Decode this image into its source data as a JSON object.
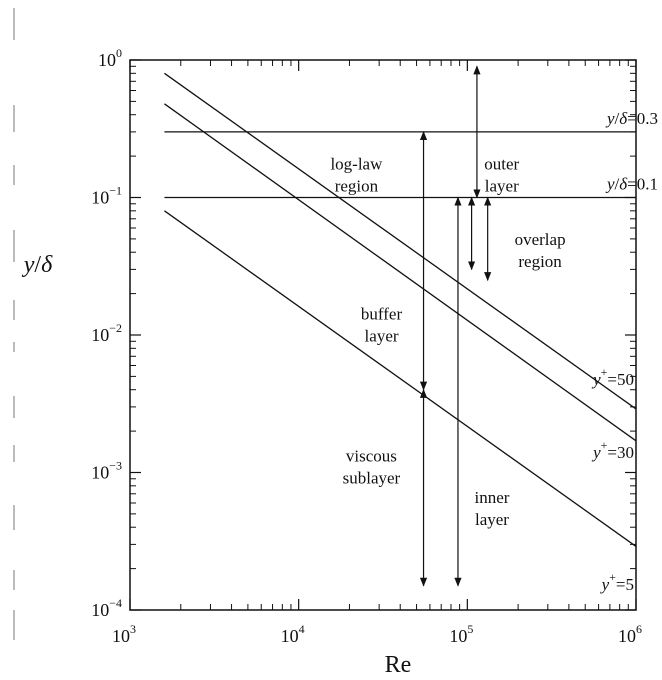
{
  "chart_data": {
    "type": "line",
    "x_scale": "log",
    "y_scale": "log",
    "xlabel_main": "Re",
    "ylabel_main": "y",
    "ylabel_sep": "/",
    "ylabel_sym": "δ",
    "xlim": [
      1000,
      1000000
    ],
    "ylim": [
      0.0001,
      1
    ],
    "x_ticks": [
      {
        "base": "10",
        "exp": "3",
        "value": 1000
      },
      {
        "base": "10",
        "exp": "4",
        "value": 10000
      },
      {
        "base": "10",
        "exp": "5",
        "value": 100000
      },
      {
        "base": "10",
        "exp": "6",
        "value": 1000000
      }
    ],
    "y_ticks": [
      {
        "base": "10",
        "exp": "0",
        "value": 1
      },
      {
        "base": "10",
        "exp": "−1",
        "value": 0.1
      },
      {
        "base": "10",
        "exp": "−2",
        "value": 0.01
      },
      {
        "base": "10",
        "exp": "−3",
        "value": 0.001
      },
      {
        "base": "10",
        "exp": "−4",
        "value": 0.0001
      }
    ],
    "series": [
      {
        "name": "y+=50",
        "label_main": "y",
        "label_sup": "+",
        "label_rest": "=50",
        "x": [
          1600,
          1000000
        ],
        "y": [
          0.8,
          0.0029
        ]
      },
      {
        "name": "y+=30",
        "label_main": "y",
        "label_sup": "+",
        "label_rest": "=30",
        "x": [
          1600,
          1000000
        ],
        "y": [
          0.48,
          0.0017
        ]
      },
      {
        "name": "y+=5",
        "label_main": "y",
        "label_sup": "+",
        "label_rest": "=5",
        "x": [
          1600,
          1000000
        ],
        "y": [
          0.08,
          0.00029
        ]
      }
    ],
    "hlines": [
      {
        "y": 0.3,
        "label_main": "y",
        "label_sep": "/",
        "label_sym": "δ",
        "label_rest": "=0.3"
      },
      {
        "y": 0.1,
        "label_main": "y",
        "label_sep": "/",
        "label_sym": "δ",
        "label_rest": "=0.1"
      }
    ],
    "ranges": [
      {
        "x": 55000,
        "y_from": 0.3,
        "y_to": 0.004
      },
      {
        "x": 55000,
        "y_from": 0.004,
        "y_to": 0.00015
      },
      {
        "x": 88000,
        "y_from": 0.1,
        "y_to": 0.00015
      },
      {
        "x": 106000,
        "y_from": 0.1,
        "y_to": 0.03
      },
      {
        "x": 114000,
        "y_from": 0.9,
        "y_to": 0.1
      },
      {
        "x": 132000,
        "y_from": 0.1,
        "y_to": 0.025
      }
    ],
    "annotations": [
      {
        "lines": [
          "log-law",
          "region"
        ],
        "x": 22000,
        "y": 0.16
      },
      {
        "lines": [
          "outer",
          "layer"
        ],
        "x": 160000,
        "y": 0.16
      },
      {
        "lines": [
          "overlap",
          "region"
        ],
        "x": 270000,
        "y": 0.045
      },
      {
        "lines": [
          "buffer",
          "layer"
        ],
        "x": 31000,
        "y": 0.013
      },
      {
        "lines": [
          "viscous",
          "sublayer"
        ],
        "x": 27000,
        "y": 0.0012
      },
      {
        "lines": [
          "inner",
          "layer"
        ],
        "x": 140000,
        "y": 0.0006
      }
    ],
    "grid": false
  }
}
